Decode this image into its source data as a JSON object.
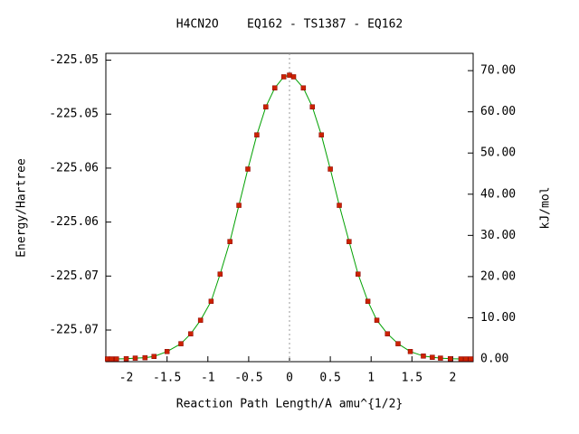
{
  "chart_data": {
    "type": "line",
    "title": "H4CN2O    EQ162 - TS1387 - EQ162",
    "x_label": "Reaction Path Length/A amu^{1/2}",
    "y_label": "Energy/Hartree",
    "y2_label": "kJ/mol",
    "x": [
      -2.23,
      -2.18,
      -2.12,
      -2.0,
      -1.89,
      -1.77,
      -1.66,
      -1.5,
      -1.33,
      -1.21,
      -1.09,
      -0.96,
      -0.85,
      -0.73,
      -0.62,
      -0.51,
      -0.4,
      -0.29,
      -0.18,
      -0.07,
      0,
      0.05,
      0.17,
      0.28,
      0.39,
      0.5,
      0.61,
      0.73,
      0.84,
      0.96,
      1.07,
      1.2,
      1.33,
      1.48,
      1.64,
      1.75,
      1.85,
      1.97,
      2.1,
      2.16,
      2.22
    ],
    "series": [
      {
        "name": "kJ/mol",
        "axis": "y2",
        "color": "#00a000",
        "marker_color": "#cc2200",
        "values": [
          0,
          0,
          0,
          0.05,
          0.2,
          0.3,
          0.6,
          1.8,
          3.7,
          6.1,
          9.4,
          14.0,
          20.6,
          28.5,
          37.3,
          46.1,
          54.4,
          61.2,
          65.8,
          68.5,
          68.9,
          68.5,
          65.8,
          61.2,
          54.4,
          46.1,
          37.3,
          28.5,
          20.6,
          14.0,
          9.4,
          6.1,
          3.7,
          1.8,
          0.7,
          0.4,
          0.2,
          0.05,
          0,
          0,
          0
        ]
      }
    ],
    "xlim": [
      -2.25,
      2.25
    ],
    "xticks": [
      -2,
      -1.5,
      -1,
      -0.5,
      0,
      0.5,
      1,
      1.5,
      2
    ],
    "ylim": [
      -225.07533,
      -225.04677
    ],
    "yticks": [
      {
        "value": -225.0724,
        "label": "-225.07"
      },
      {
        "value": -225.0674,
        "label": "-225.07"
      },
      {
        "value": -225.0624,
        "label": "-225.06"
      },
      {
        "value": -225.0574,
        "label": "-225.06"
      },
      {
        "value": -225.0524,
        "label": "-225.05"
      },
      {
        "value": -225.0474,
        "label": "-225.05"
      }
    ],
    "y2lim": [
      -0.66,
      74.2
    ],
    "y2ticks": [
      {
        "value": 0,
        "label": "0.00"
      },
      {
        "value": 10,
        "label": "10.00"
      },
      {
        "value": 20,
        "label": "20.00"
      },
      {
        "value": 30,
        "label": "30.00"
      },
      {
        "value": 40,
        "label": "40.00"
      },
      {
        "value": 50,
        "label": "50.00"
      },
      {
        "value": 60,
        "label": "60.00"
      },
      {
        "value": 70,
        "label": "70.00"
      }
    ],
    "vline_x": 0
  }
}
